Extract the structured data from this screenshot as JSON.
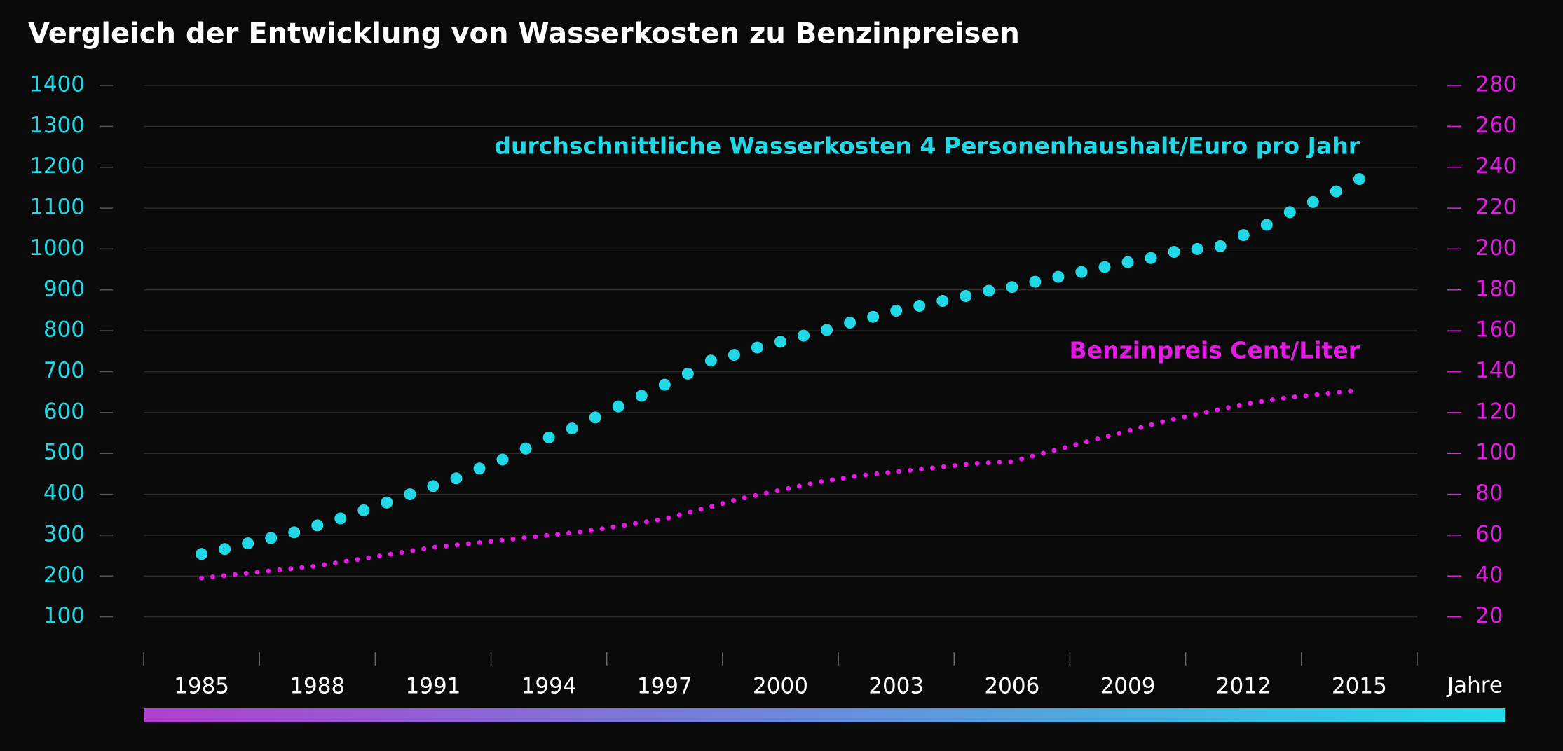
{
  "chart_data": {
    "type": "scatter-line",
    "title": "Vergleich der Entwicklung von Wasserkosten zu Benzinpreisen",
    "xlabel": "Jahre",
    "xlim": [
      1983.5,
      2016.5
    ],
    "xticks": [
      1985,
      1988,
      1991,
      1994,
      1997,
      2000,
      2003,
      2006,
      2009,
      2012,
      2015
    ],
    "ylim": [
      0,
      1400
    ],
    "yticks": [
      100,
      200,
      300,
      400,
      500,
      600,
      700,
      800,
      900,
      1000,
      1100,
      1200,
      1300,
      1400
    ],
    "y2lim": [
      0,
      280
    ],
    "y2ticks": [
      20,
      40,
      60,
      80,
      100,
      120,
      140,
      160,
      180,
      200,
      220,
      240,
      260,
      280
    ],
    "grid": true,
    "series": [
      {
        "name": "durchschnittliche Wasserkosten 4 Personenhaushalt/Euro pro Jahr",
        "color": "#22d8e6",
        "style": "dots",
        "x": [
          1985,
          1985.6,
          1986.2,
          1986.8,
          1987.4,
          1988,
          1988.6,
          1989.2,
          1989.8,
          1990.4,
          1991,
          1991.6,
          1992.2,
          1992.8,
          1993.4,
          1994,
          1994.6,
          1995.2,
          1995.8,
          1996.4,
          1997,
          1997.6,
          1998.2,
          1998.8,
          1999.4,
          2000,
          2000.6,
          2001.2,
          2001.8,
          2002.4,
          2003,
          2003.6,
          2004.2,
          2004.8,
          2005.4,
          2006,
          2006.6,
          2007.2,
          2007.8,
          2008.4,
          2009,
          2009.6,
          2010.2,
          2010.8,
          2011.4,
          2012,
          2012.6,
          2013.2,
          2013.8,
          2014.4,
          2015
        ],
        "values": [
          254,
          266,
          280,
          293,
          307,
          324,
          341,
          361,
          380,
          400,
          420,
          439,
          463,
          485,
          512,
          539,
          561,
          588,
          615,
          641,
          668,
          695,
          727,
          741,
          759,
          773,
          788,
          802,
          820,
          834,
          849,
          861,
          873,
          885,
          898,
          907,
          920,
          932,
          944,
          956,
          968,
          978,
          993,
          1000,
          1007,
          1034,
          1059,
          1090,
          1115,
          1141,
          1171
        ]
      },
      {
        "name": "Benzinpreis Cent/Liter",
        "color": "#e619e6",
        "style": "dotted-line",
        "axis": "y2",
        "x": [
          1985,
          1986,
          1987,
          1988,
          1989,
          1990,
          1991,
          1992,
          1993,
          1994,
          1995,
          1996,
          1997,
          1998,
          1999,
          2000,
          2001,
          2002,
          2003,
          2004,
          2005,
          2006,
          2007,
          2008,
          2009,
          2010,
          2011,
          2012,
          2013,
          2014,
          2015
        ],
        "values": [
          39,
          41,
          43,
          45,
          48,
          51,
          54,
          56,
          58,
          60,
          62,
          65,
          68,
          73,
          78,
          82,
          86,
          89,
          91,
          93,
          95,
          96,
          101,
          106,
          111,
          116,
          120,
          124,
          127,
          129,
          131
        ]
      }
    ]
  }
}
